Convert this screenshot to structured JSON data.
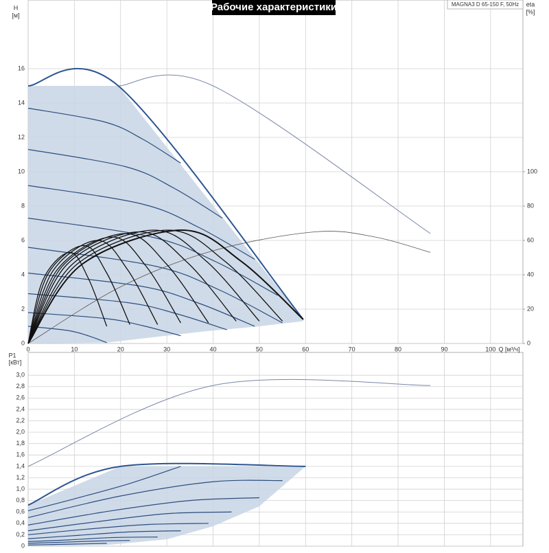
{
  "chart_data": [
    {
      "type": "line",
      "title": "Рабочие характеристики",
      "subtitle": "MAGNA3 D 65-150 F, 50Hz",
      "xlabel": "Q [м³/ч]",
      "ylabel": "H",
      "ylabel_unit": "[м]",
      "y2label": "eta",
      "y2label_unit": "[%]",
      "xlim": [
        0,
        107
      ],
      "xticks": [
        0,
        10,
        20,
        30,
        40,
        50,
        60,
        70,
        80,
        90,
        100
      ],
      "ylim": [
        0,
        20
      ],
      "yticks": [
        0,
        2,
        4,
        6,
        8,
        10,
        12,
        14,
        16
      ],
      "y2lim": [
        0,
        200
      ],
      "y2ticks": [
        0,
        20,
        40,
        60,
        80,
        100
      ],
      "grid": true,
      "xtick_labels": true,
      "series": [
        {
          "type": "area",
          "color": "#c8d5e5",
          "x": [
            0,
            0,
            19.5,
            59.5,
            59.5,
            50,
            38,
            25,
            17
          ],
          "values": [
            0,
            15,
            15,
            1.4,
            1.3,
            1.0,
            0.7,
            0.3,
            0.05
          ]
        },
        {
          "type": "line",
          "color": "#7a86a8",
          "width": 1,
          "x": [
            19.5,
            40,
            87
          ],
          "values": [
            15,
            15,
            6.4
          ]
        },
        {
          "type": "line",
          "color": "#2b4d7e",
          "width": 1.2,
          "x": [
            0,
            16.5,
            24.75,
            33
          ],
          "values": [
            13.7,
            12.9,
            11.9,
            10.5
          ]
        },
        {
          "type": "line",
          "color": "#2b4d7e",
          "width": 1.2,
          "x": [
            0,
            21,
            31.5,
            42
          ],
          "values": [
            11.3,
            10.3,
            9.05,
            7.3
          ]
        },
        {
          "type": "line",
          "color": "#2b4d7e",
          "width": 1.2,
          "x": [
            0,
            24.5,
            36.75,
            49
          ],
          "values": [
            9.2,
            8.13,
            6.78,
            4.9
          ]
        },
        {
          "type": "line",
          "color": "#2b4d7e",
          "width": 1.2,
          "x": [
            0,
            27,
            40.5,
            54
          ],
          "values": [
            7.3,
            6.18,
            4.77,
            2.8
          ]
        },
        {
          "type": "line",
          "color": "#2b4d7e",
          "width": 1.2,
          "x": [
            0,
            27.5,
            41.25,
            55
          ],
          "values": [
            5.6,
            4.5,
            3.13,
            1.2
          ]
        },
        {
          "type": "line",
          "color": "#2b4d7e",
          "width": 1.2,
          "x": [
            0,
            24.5,
            36.75,
            49
          ],
          "values": [
            4.1,
            3.33,
            2.36,
            1.0
          ]
        },
        {
          "type": "line",
          "color": "#2b4d7e",
          "width": 1.2,
          "x": [
            0,
            21.5,
            32.25,
            43
          ],
          "values": [
            2.9,
            2.38,
            1.72,
            0.8
          ]
        },
        {
          "type": "line",
          "color": "#2b4d7e",
          "width": 1.2,
          "x": [
            0,
            16.5,
            24.75,
            33
          ],
          "values": [
            1.8,
            1.46,
            1.04,
            0.45
          ]
        },
        {
          "type": "line",
          "color": "#2b4d7e",
          "width": 1.2,
          "x": [
            0,
            8.5,
            12.75,
            17
          ],
          "values": [
            1.0,
            0.76,
            0.47,
            0.05
          ]
        },
        {
          "type": "line",
          "color": "#2d5590",
          "width": 2,
          "x": [
            0,
            19.5,
            59.5
          ],
          "values": [
            15,
            15,
            1.4
          ]
        },
        {
          "type": "line",
          "axis": "y2",
          "color": "#555555",
          "width": 0.8,
          "x": [
            0,
            20,
            40,
            62,
            75,
            87
          ],
          "values": [
            0,
            33,
            54,
            65,
            62,
            53
          ]
        },
        {
          "type": "line",
          "axis": "y2",
          "color": "#111111",
          "width": 1.3,
          "x": [
            0,
            3.2,
            9,
            13,
            17
          ],
          "values": [
            0,
            37,
            53,
            38,
            10
          ]
        },
        {
          "type": "line",
          "axis": "y2",
          "color": "#111111",
          "width": 1.3,
          "x": [
            0,
            4.2,
            12,
            17,
            22
          ],
          "values": [
            0,
            40,
            57,
            41,
            11
          ]
        },
        {
          "type": "line",
          "axis": "y2",
          "color": "#111111",
          "width": 1.3,
          "x": [
            0,
            5.3,
            15,
            21.5,
            28
          ],
          "values": [
            0,
            42,
            60,
            43,
            11
          ]
        },
        {
          "type": "line",
          "axis": "y2",
          "color": "#111111",
          "width": 1.3,
          "x": [
            0,
            6.3,
            18,
            25.5,
            33
          ],
          "values": [
            0,
            43,
            62,
            45,
            12
          ]
        },
        {
          "type": "line",
          "axis": "y2",
          "color": "#111111",
          "width": 1.3,
          "x": [
            0,
            7.4,
            21,
            30,
            39
          ],
          "values": [
            0,
            45,
            64,
            46,
            12
          ]
        },
        {
          "type": "line",
          "axis": "y2",
          "color": "#111111",
          "width": 1.3,
          "x": [
            0,
            8.4,
            24,
            34.5,
            45
          ],
          "values": [
            0,
            46,
            65,
            47,
            13
          ]
        },
        {
          "type": "line",
          "axis": "y2",
          "color": "#111111",
          "width": 1.3,
          "x": [
            0,
            9.5,
            27,
            38.5,
            50
          ],
          "values": [
            0,
            46,
            66,
            48,
            13
          ]
        },
        {
          "type": "line",
          "axis": "y2",
          "color": "#111111",
          "width": 1.3,
          "x": [
            0,
            10.5,
            30,
            42.5,
            55
          ],
          "values": [
            0,
            46,
            66,
            48,
            13
          ]
        },
        {
          "type": "line",
          "axis": "y2",
          "color": "#111111",
          "width": 2,
          "x": [
            0,
            11.6,
            33,
            46,
            59.5
          ],
          "values": [
            0,
            46,
            66,
            48,
            14
          ]
        }
      ]
    },
    {
      "type": "line",
      "ylabel": "P1",
      "ylabel_unit": "[кВт]",
      "xlim": [
        0,
        107
      ],
      "xticks": [
        0,
        10,
        20,
        30,
        40,
        50,
        60,
        70,
        80,
        90,
        100
      ],
      "xtick_labels": false,
      "ylim": [
        0,
        3.4
      ],
      "yticks": [
        0,
        {
          "value": 0.2,
          "label": "0,2"
        },
        {
          "value": 0.4,
          "label": "0,4"
        },
        {
          "value": 0.6,
          "label": "0,6"
        },
        {
          "value": 0.8,
          "label": "0,8"
        },
        {
          "value": 1.0,
          "label": "1,0"
        },
        {
          "value": 1.2,
          "label": "1,2"
        },
        {
          "value": 1.4,
          "label": "1,4"
        },
        {
          "value": 1.6,
          "label": "1,6"
        },
        {
          "value": 1.8,
          "label": "1,8"
        },
        {
          "value": 2.0,
          "label": "2,0"
        },
        {
          "value": 2.2,
          "label": "2,2"
        },
        {
          "value": 2.4,
          "label": "2,4"
        },
        {
          "value": 2.6,
          "label": "2,6"
        },
        {
          "value": 2.8,
          "label": "2,8"
        },
        {
          "value": 3.0,
          "label": "3,0"
        }
      ],
      "grid": true,
      "series": [
        {
          "type": "area",
          "color": "#c8d5e5",
          "x": [
            0,
            0,
            20,
            60,
            50,
            40,
            30,
            17
          ],
          "values": [
            0,
            0.72,
            1.4,
            1.4,
            0.7,
            0.35,
            0.12,
            0.02
          ]
        },
        {
          "type": "line",
          "color": "#7a86a8",
          "width": 1,
          "x": [
            0,
            40,
            87
          ],
          "values": [
            1.4,
            2.82,
            2.82
          ]
        },
        {
          "type": "line",
          "color": "#2b4d7e",
          "width": 1.2,
          "x": [
            0,
            10,
            22,
            33
          ],
          "values": [
            0.62,
            0.83,
            1.1,
            1.4
          ]
        },
        {
          "type": "line",
          "color": "#2b4d7e",
          "width": 1.2,
          "x": [
            0,
            20,
            40,
            55
          ],
          "values": [
            0.5,
            0.88,
            1.13,
            1.15
          ]
        },
        {
          "type": "line",
          "color": "#2b4d7e",
          "width": 1.2,
          "x": [
            0,
            18,
            35,
            50
          ],
          "values": [
            0.37,
            0.62,
            0.8,
            0.85
          ]
        },
        {
          "type": "line",
          "color": "#2b4d7e",
          "width": 1.2,
          "x": [
            0,
            15,
            30,
            44
          ],
          "values": [
            0.27,
            0.43,
            0.57,
            0.6
          ]
        },
        {
          "type": "line",
          "color": "#2b4d7e",
          "width": 1.2,
          "x": [
            0,
            13,
            26,
            39
          ],
          "values": [
            0.2,
            0.3,
            0.38,
            0.4
          ]
        },
        {
          "type": "line",
          "color": "#2b4d7e",
          "width": 1.2,
          "x": [
            0,
            11,
            22,
            33
          ],
          "values": [
            0.13,
            0.19,
            0.25,
            0.27
          ]
        },
        {
          "type": "line",
          "color": "#2b4d7e",
          "width": 1.2,
          "x": [
            0,
            9,
            18,
            28
          ],
          "values": [
            0.08,
            0.11,
            0.15,
            0.16
          ]
        },
        {
          "type": "line",
          "color": "#2b4d7e",
          "width": 1.2,
          "x": [
            0,
            8,
            15,
            22
          ],
          "values": [
            0.05,
            0.07,
            0.09,
            0.1
          ]
        },
        {
          "type": "line",
          "color": "#2b4d7e",
          "width": 1.2,
          "x": [
            0,
            6,
            12,
            17
          ],
          "values": [
            0.02,
            0.03,
            0.04,
            0.05
          ]
        },
        {
          "type": "line",
          "color": "#2d5590",
          "width": 2,
          "x": [
            0,
            20,
            60
          ],
          "values": [
            0.72,
            1.4,
            1.4
          ]
        }
      ]
    }
  ]
}
